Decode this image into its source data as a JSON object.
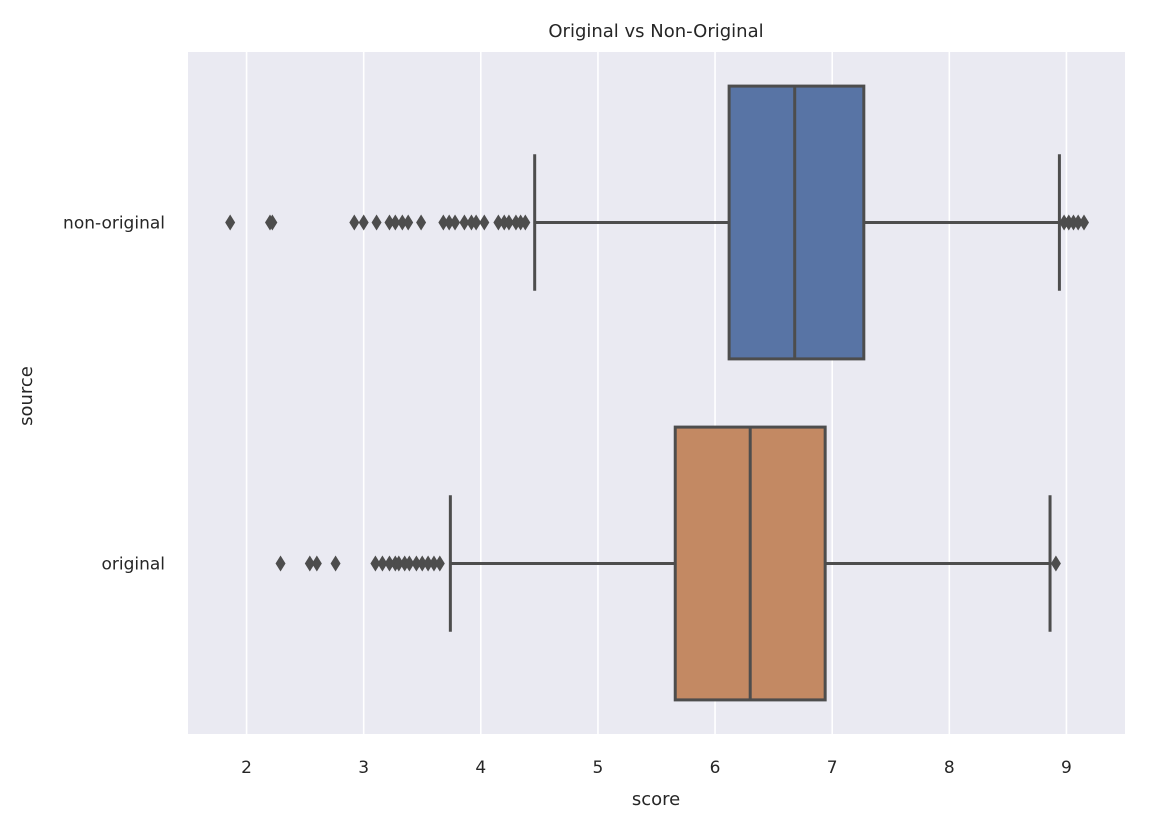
{
  "chart_data": {
    "type": "box",
    "orientation": "horizontal",
    "title": "Original vs Non-Original",
    "xlabel": "score",
    "ylabel": "source",
    "xlim": [
      1.5,
      9.5
    ],
    "xticks": [
      2,
      3,
      4,
      5,
      6,
      7,
      8,
      9
    ],
    "grid": "vertical",
    "categories": [
      "non-original",
      "original"
    ],
    "series": [
      {
        "category": "non-original",
        "color": "#5874a5",
        "whisker_low": 4.46,
        "q1": 6.12,
        "median": 6.68,
        "q3": 7.27,
        "whisker_high": 8.94,
        "outliers": [
          1.86,
          2.2,
          2.22,
          2.92,
          3.0,
          3.11,
          3.22,
          3.27,
          3.33,
          3.38,
          3.49,
          3.68,
          3.73,
          3.78,
          3.86,
          3.92,
          3.96,
          4.03,
          4.15,
          4.2,
          4.24,
          4.3,
          4.34,
          4.38,
          8.98,
          9.02,
          9.06,
          9.1,
          9.15
        ]
      },
      {
        "category": "original",
        "color": "#c38963",
        "whisker_low": 3.74,
        "q1": 5.66,
        "median": 6.3,
        "q3": 6.94,
        "whisker_high": 8.86,
        "outliers": [
          2.29,
          2.54,
          2.6,
          2.76,
          3.1,
          3.16,
          3.22,
          3.27,
          3.3,
          3.35,
          3.39,
          3.45,
          3.5,
          3.55,
          3.6,
          3.65,
          8.91
        ]
      }
    ]
  }
}
